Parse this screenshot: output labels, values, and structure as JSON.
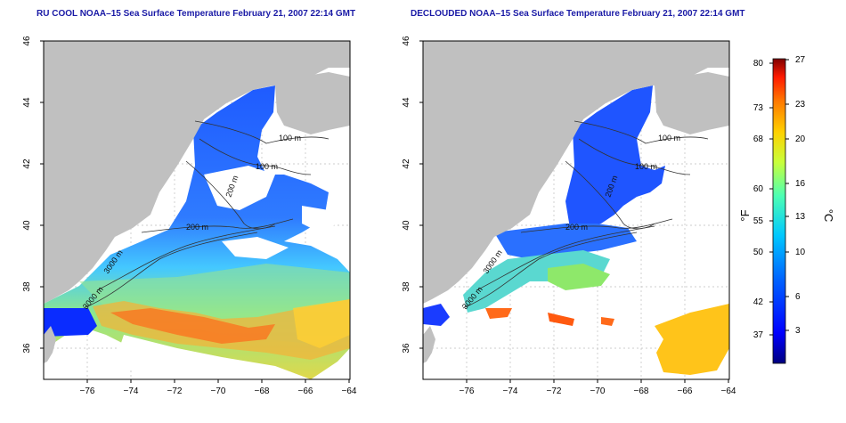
{
  "panels": [
    {
      "id": "left",
      "title": "RU COOL NOAA–15 Sea Surface Temperature February 21, 2007 22:14 GMT",
      "contours": [
        "100 m",
        "100 m",
        "200 m",
        "200 m",
        "3000 m",
        "3000 m"
      ]
    },
    {
      "id": "right",
      "title": "DECLOUDED NOAA–15 Sea Surface Temperature February 21, 2007 22:14 GMT",
      "contours": [
        "100 m",
        "100 m",
        "200 m",
        "200 m",
        "3000 m",
        "3000 m"
      ]
    }
  ],
  "axes": {
    "lon_ticks": [
      "−76",
      "−74",
      "−72",
      "−70",
      "−68",
      "−66",
      "−64"
    ],
    "lat_ticks": [
      "36",
      "38",
      "40",
      "42",
      "44",
      "46"
    ]
  },
  "colorbar": {
    "f_ticks": [
      "80",
      "73",
      "68",
      "60",
      "55",
      "50",
      "42",
      "37"
    ],
    "c_ticks": [
      "27",
      "23",
      "20",
      "16",
      "13",
      "10",
      "6",
      "3"
    ],
    "f_unit": "°F",
    "c_unit": "°C"
  },
  "colors": {
    "land": "#c0c0c0",
    "ocean_no_data": "#ffffff",
    "title": "#1a1aa6",
    "colorbar_stops": [
      "#00007f",
      "#0000ff",
      "#0066ff",
      "#00c8ff",
      "#4dffb3",
      "#c8ff3a",
      "#ffd000",
      "#ff7a00",
      "#ff1a00",
      "#7f0000"
    ]
  }
}
